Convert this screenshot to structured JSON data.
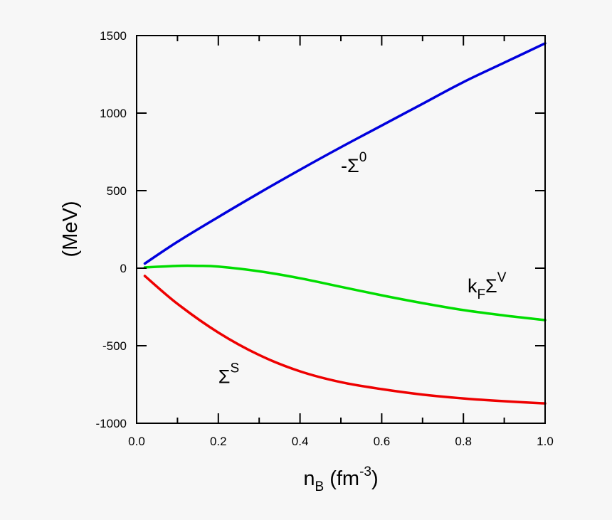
{
  "chart_data": {
    "type": "line",
    "title": "",
    "xlabel": {
      "main": "n",
      "sub": "B",
      "unit": " (fm",
      "sup": "-3",
      "close": ")"
    },
    "ylabel": "(MeV)",
    "xlim": [
      0.0,
      1.0
    ],
    "ylim": [
      -1000,
      1500
    ],
    "xticks": [
      0.0,
      0.2,
      0.4,
      0.6,
      0.8,
      1.0
    ],
    "xtick_labels": [
      "0.0",
      "0.2",
      "0.4",
      "0.6",
      "0.8",
      "1.0"
    ],
    "yticks": [
      -1000,
      -500,
      0,
      500,
      1000,
      1500
    ],
    "ytick_labels": [
      "-1000",
      "-500",
      "0",
      "500",
      "1000",
      "1500"
    ],
    "grid": false,
    "legend": "none",
    "series": [
      {
        "color": "#0000dd",
        "label": {
          "main": "-Σ",
          "sup": "0",
          "x": 0.5,
          "y": 620
        },
        "points": [
          [
            0.02,
            30
          ],
          [
            0.1,
            170
          ],
          [
            0.2,
            330
          ],
          [
            0.3,
            485
          ],
          [
            0.4,
            635
          ],
          [
            0.5,
            780
          ],
          [
            0.6,
            920
          ],
          [
            0.7,
            1060
          ],
          [
            0.8,
            1200
          ],
          [
            0.9,
            1325
          ],
          [
            1.0,
            1450
          ]
        ]
      },
      {
        "color": "#00dd00",
        "label": {
          "main": "k",
          "sub": "F",
          "rest": "Σ",
          "sup": "V",
          "x": 0.81,
          "y": -155
        },
        "points": [
          [
            0.02,
            5
          ],
          [
            0.1,
            15
          ],
          [
            0.15,
            15
          ],
          [
            0.2,
            10
          ],
          [
            0.3,
            -20
          ],
          [
            0.4,
            -65
          ],
          [
            0.5,
            -120
          ],
          [
            0.6,
            -175
          ],
          [
            0.7,
            -225
          ],
          [
            0.8,
            -270
          ],
          [
            0.9,
            -305
          ],
          [
            1.0,
            -335
          ]
        ]
      },
      {
        "color": "#ee0000",
        "label": {
          "main": "Σ",
          "sup": "S",
          "x": 0.2,
          "y": -740
        },
        "points": [
          [
            0.02,
            -50
          ],
          [
            0.1,
            -230
          ],
          [
            0.2,
            -415
          ],
          [
            0.3,
            -560
          ],
          [
            0.4,
            -665
          ],
          [
            0.5,
            -735
          ],
          [
            0.6,
            -780
          ],
          [
            0.7,
            -815
          ],
          [
            0.8,
            -840
          ],
          [
            0.9,
            -858
          ],
          [
            1.0,
            -872
          ]
        ]
      }
    ]
  }
}
